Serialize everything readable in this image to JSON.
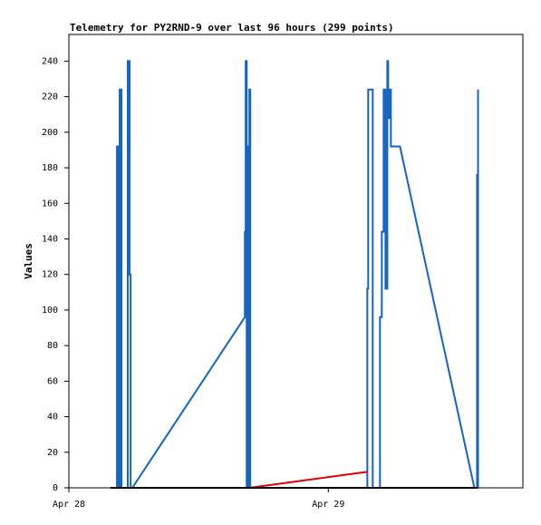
{
  "chart_data": {
    "type": "line",
    "title": "Telemetry for PY2RND-9 over last 96 hours (299 points)",
    "y_label": "Values",
    "xlim": [
      0,
      42
    ],
    "xticks": [
      {
        "value": 0,
        "label": "Apr 28"
      },
      {
        "value": 24,
        "label": "Apr 29"
      }
    ],
    "ylim": [
      0,
      255
    ],
    "yticks": [
      0,
      20,
      40,
      60,
      80,
      100,
      120,
      140,
      160,
      180,
      200,
      220,
      240
    ],
    "series": [
      {
        "color": "#1565c0",
        "x": [
          4.45,
          4.45,
          4.62,
          4.62,
          4.7,
          4.7,
          4.87,
          4.87,
          5.45,
          5.45,
          5.62,
          5.62,
          5.71,
          5.71,
          5.87,
          16.28,
          16.28,
          16.36,
          16.36,
          16.45,
          16.45,
          16.53,
          16.53,
          16.62,
          16.62,
          16.7,
          16.7,
          16.78,
          16.78,
          27.61,
          27.61,
          27.69,
          27.69,
          28.11,
          28.11,
          28.78,
          28.78,
          28.95,
          28.95,
          29.12,
          29.12,
          29.29,
          29.29,
          29.46,
          29.46,
          29.54,
          29.54,
          29.71,
          29.71,
          29.79,
          29.79,
          30.63,
          37.51,
          37.76,
          37.76,
          37.85,
          37.85,
          37.85
        ],
        "values": [
          0,
          192,
          192,
          0,
          0,
          224,
          224,
          0,
          0,
          240,
          240,
          120,
          120,
          0,
          0,
          96,
          144,
          144,
          240,
          240,
          0,
          0,
          192,
          192,
          0,
          0,
          224,
          224,
          0,
          0,
          112,
          112,
          224,
          224,
          0,
          0,
          96,
          96,
          144,
          144,
          224,
          224,
          112,
          112,
          240,
          240,
          208,
          208,
          224,
          224,
          192,
          192,
          0,
          0,
          176,
          176,
          224,
          0
        ]
      },
      {
        "color": "#e00000",
        "x": [
          16.7,
          27.61
        ],
        "values": [
          0,
          9
        ]
      },
      {
        "color": "#000000",
        "x": [
          3.86,
          37.85
        ],
        "values": [
          0,
          0
        ]
      }
    ]
  }
}
